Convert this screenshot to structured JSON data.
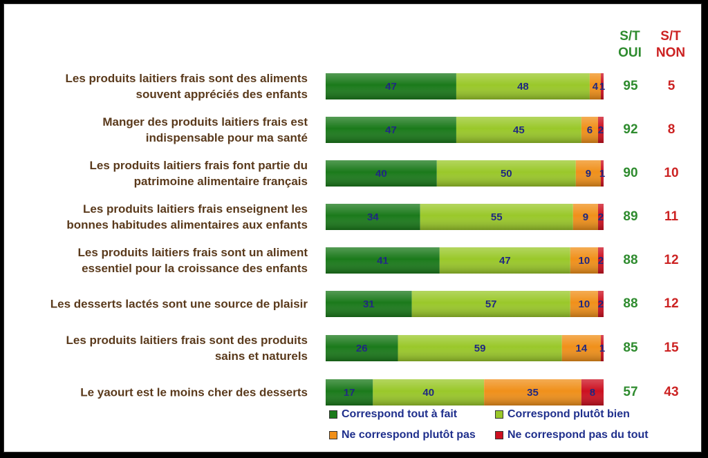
{
  "headers": {
    "oui": [
      "S/T",
      "OUI"
    ],
    "non": [
      "S/T",
      "NON"
    ]
  },
  "colors": {
    "tout_a_fait": "#1b7a1b",
    "plutot_bien": "#9ac82a",
    "plutot_pas": "#f0901a",
    "pas_du_tout": "#cc1020",
    "value_text": "#1a237e",
    "label_text": "#5a3a1c",
    "st_oui": "#2e8b2e",
    "st_non": "#cc2222"
  },
  "chart_data": {
    "type": "bar",
    "orientation": "horizontal",
    "stacked": true,
    "xlim": [
      0,
      100
    ],
    "categories": [
      [
        "Les produits laitiers frais sont des aliments",
        "souvent appréciés des enfants"
      ],
      [
        "Manger des produits laitiers frais est",
        "indispensable pour ma santé"
      ],
      [
        "Les produits laitiers frais font partie du",
        "patrimoine alimentaire français"
      ],
      [
        "Les produits laitiers frais enseignent les",
        "bonnes habitudes alimentaires aux enfants"
      ],
      [
        "Les produits laitiers frais sont un aliment",
        "essentiel pour la croissance des enfants"
      ],
      [
        "Les desserts lactés sont une source de plaisir"
      ],
      [
        "Les produits laitiers frais sont des produits",
        "sains et naturels"
      ],
      [
        "Le yaourt est le moins cher des desserts"
      ]
    ],
    "series": [
      {
        "name": "Correspond tout à fait",
        "values": [
          47,
          47,
          40,
          34,
          41,
          31,
          26,
          17
        ]
      },
      {
        "name": "Correspond plutôt bien",
        "values": [
          48,
          45,
          50,
          55,
          47,
          57,
          59,
          40
        ]
      },
      {
        "name": "Ne correspond plutôt pas",
        "values": [
          4,
          6,
          9,
          9,
          10,
          10,
          14,
          35
        ]
      },
      {
        "name": "Ne correspond pas du tout",
        "values": [
          1,
          2,
          1,
          2,
          2,
          2,
          1,
          8
        ]
      }
    ],
    "st_oui": [
      95,
      92,
      90,
      89,
      88,
      88,
      85,
      57
    ],
    "st_non": [
      5,
      8,
      10,
      11,
      12,
      12,
      15,
      43
    ],
    "legend_position": "bottom"
  }
}
